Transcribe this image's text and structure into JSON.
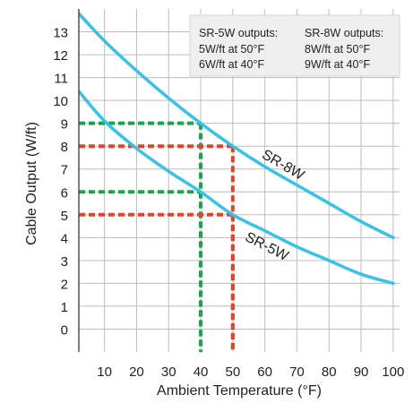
{
  "chart_data": {
    "type": "line",
    "title": "",
    "xlabel": "Ambient Temperature (°F)",
    "ylabel": "Cable Output (W/ft)",
    "xlim": [
      2,
      102
    ],
    "ylim": [
      -1,
      14
    ],
    "x_ticks": [
      10,
      20,
      30,
      40,
      50,
      60,
      70,
      80,
      90,
      100
    ],
    "y_ticks": [
      0,
      1,
      2,
      3,
      4,
      5,
      6,
      7,
      8,
      9,
      10,
      11,
      12,
      13
    ],
    "grid": true,
    "series": [
      {
        "name": "SR-8W",
        "color": "#35c3ea",
        "x": [
          2,
          10,
          20,
          30,
          40,
          50,
          60,
          70,
          80,
          90,
          100
        ],
        "y": [
          13.8,
          12.6,
          11.3,
          10.1,
          9.0,
          8.0,
          7.1,
          6.3,
          5.5,
          4.7,
          4.0
        ]
      },
      {
        "name": "SR-5W",
        "color": "#35c3ea",
        "x": [
          2,
          10,
          20,
          30,
          40,
          50,
          60,
          70,
          80,
          90,
          100
        ],
        "y": [
          10.4,
          9.1,
          7.9,
          6.9,
          6.0,
          5.0,
          4.3,
          3.6,
          3.0,
          2.4,
          2.0
        ]
      }
    ],
    "reference_lines": [
      {
        "series": "SR-8W",
        "x": 40,
        "y": 9,
        "color": "#1aa54a"
      },
      {
        "series": "SR-5W",
        "x": 40,
        "y": 6,
        "color": "#1aa54a"
      },
      {
        "series": "SR-8W",
        "x": 50,
        "y": 8,
        "color": "#e0452a"
      },
      {
        "series": "SR-5W",
        "x": 50,
        "y": 5,
        "color": "#e0452a"
      }
    ],
    "annotation_box": {
      "columns": [
        {
          "header": "SR-5W outputs:",
          "lines": [
            "5W/ft at 50°F",
            "6W/ft at 40°F"
          ]
        },
        {
          "header": "SR-8W outputs:",
          "lines": [
            "8W/ft at 50°F",
            "9W/ft at 40°F"
          ]
        }
      ]
    }
  }
}
